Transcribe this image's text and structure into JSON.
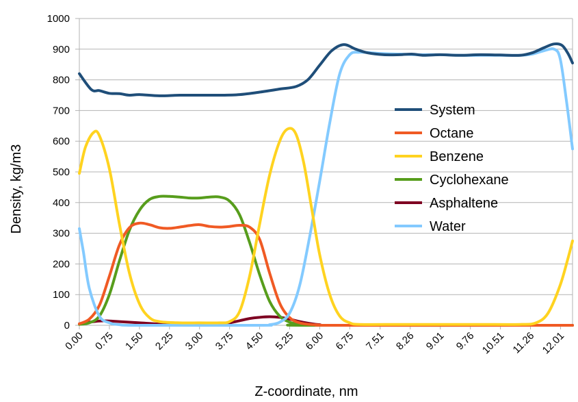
{
  "chart_data": {
    "type": "line",
    "title": "",
    "xlabel": "Z-coordinate, nm",
    "ylabel": "Density, kg/m3",
    "xlim": [
      0,
      12.31
    ],
    "ylim": [
      0,
      1000
    ],
    "x_ticks": [
      "0.00",
      "0.75",
      "1.50",
      "2.25",
      "3.00",
      "3.75",
      "4.50",
      "5.25",
      "6.00",
      "6.75",
      "7.51",
      "8.26",
      "9.01",
      "9.76",
      "10.51",
      "11.26",
      "12.01"
    ],
    "x_tick_values": [
      0,
      0.75,
      1.5,
      2.25,
      3.0,
      3.75,
      4.5,
      5.25,
      6.0,
      6.75,
      7.51,
      8.26,
      9.01,
      9.76,
      10.51,
      11.26,
      12.01
    ],
    "y_ticks": [
      "0",
      "100",
      "200",
      "300",
      "400",
      "500",
      "600",
      "700",
      "800",
      "900",
      "1000"
    ],
    "y_tick_values": [
      0,
      100,
      200,
      300,
      400,
      500,
      600,
      700,
      800,
      900,
      1000
    ],
    "grid": "horizontal",
    "legend_position": "right-middle",
    "series": [
      {
        "name": "System",
        "color": "#1f4e79",
        "points": [
          [
            0,
            820
          ],
          [
            0.3,
            768
          ],
          [
            0.5,
            765
          ],
          [
            0.75,
            756
          ],
          [
            1.0,
            755
          ],
          [
            1.25,
            750
          ],
          [
            1.5,
            752
          ],
          [
            2.0,
            748
          ],
          [
            2.5,
            750
          ],
          [
            3.0,
            750
          ],
          [
            3.5,
            750
          ],
          [
            4.0,
            752
          ],
          [
            4.5,
            760
          ],
          [
            5.0,
            770
          ],
          [
            5.4,
            778
          ],
          [
            5.7,
            800
          ],
          [
            6.0,
            848
          ],
          [
            6.3,
            895
          ],
          [
            6.6,
            915
          ],
          [
            6.9,
            900
          ],
          [
            7.2,
            888
          ],
          [
            7.6,
            882
          ],
          [
            8.0,
            882
          ],
          [
            8.3,
            884
          ],
          [
            8.6,
            880
          ],
          [
            9.0,
            882
          ],
          [
            9.5,
            880
          ],
          [
            10.0,
            882
          ],
          [
            10.5,
            881
          ],
          [
            11.0,
            880
          ],
          [
            11.3,
            888
          ],
          [
            11.6,
            905
          ],
          [
            11.85,
            917
          ],
          [
            12.05,
            912
          ],
          [
            12.2,
            885
          ],
          [
            12.31,
            855
          ]
        ]
      },
      {
        "name": "Octane",
        "color": "#f05a24",
        "points": [
          [
            0,
            5
          ],
          [
            0.25,
            20
          ],
          [
            0.5,
            65
          ],
          [
            0.75,
            160
          ],
          [
            1.0,
            262
          ],
          [
            1.25,
            318
          ],
          [
            1.5,
            333
          ],
          [
            1.75,
            328
          ],
          [
            2.0,
            318
          ],
          [
            2.25,
            316
          ],
          [
            2.5,
            320
          ],
          [
            2.75,
            325
          ],
          [
            3.0,
            328
          ],
          [
            3.25,
            322
          ],
          [
            3.5,
            320
          ],
          [
            3.75,
            322
          ],
          [
            4.0,
            326
          ],
          [
            4.25,
            320
          ],
          [
            4.5,
            280
          ],
          [
            4.75,
            170
          ],
          [
            5.0,
            72
          ],
          [
            5.25,
            25
          ],
          [
            5.5,
            8
          ],
          [
            5.75,
            3
          ],
          [
            6.0,
            1
          ],
          [
            6.5,
            0
          ],
          [
            12.31,
            0
          ]
        ]
      },
      {
        "name": "Benzene",
        "color": "#ffd320",
        "points": [
          [
            0,
            495
          ],
          [
            0.15,
            580
          ],
          [
            0.35,
            628
          ],
          [
            0.5,
            618
          ],
          [
            0.75,
            510
          ],
          [
            1.0,
            330
          ],
          [
            1.25,
            170
          ],
          [
            1.5,
            70
          ],
          [
            1.75,
            25
          ],
          [
            2.0,
            12
          ],
          [
            2.5,
            8
          ],
          [
            3.0,
            8
          ],
          [
            3.5,
            8
          ],
          [
            3.75,
            12
          ],
          [
            4.0,
            45
          ],
          [
            4.25,
            160
          ],
          [
            4.5,
            330
          ],
          [
            4.75,
            490
          ],
          [
            5.0,
            600
          ],
          [
            5.2,
            640
          ],
          [
            5.4,
            625
          ],
          [
            5.6,
            530
          ],
          [
            5.8,
            380
          ],
          [
            6.0,
            230
          ],
          [
            6.25,
            100
          ],
          [
            6.5,
            30
          ],
          [
            6.75,
            8
          ],
          [
            7.0,
            3
          ],
          [
            8.0,
            3
          ],
          [
            9.0,
            3
          ],
          [
            10.0,
            3
          ],
          [
            11.0,
            3
          ],
          [
            11.4,
            8
          ],
          [
            11.7,
            40
          ],
          [
            12.0,
            130
          ],
          [
            12.2,
            220
          ],
          [
            12.31,
            275
          ]
        ]
      },
      {
        "name": "Cyclohexane",
        "color": "#579d1c",
        "points": [
          [
            0,
            3
          ],
          [
            0.25,
            8
          ],
          [
            0.5,
            30
          ],
          [
            0.75,
            100
          ],
          [
            1.0,
            210
          ],
          [
            1.25,
            310
          ],
          [
            1.5,
            375
          ],
          [
            1.75,
            410
          ],
          [
            2.0,
            420
          ],
          [
            2.25,
            420
          ],
          [
            2.5,
            418
          ],
          [
            2.75,
            415
          ],
          [
            3.0,
            415
          ],
          [
            3.25,
            418
          ],
          [
            3.5,
            418
          ],
          [
            3.75,
            405
          ],
          [
            4.0,
            360
          ],
          [
            4.25,
            270
          ],
          [
            4.5,
            165
          ],
          [
            4.75,
            78
          ],
          [
            5.0,
            30
          ],
          [
            5.25,
            10
          ],
          [
            5.5,
            3
          ],
          [
            5.75,
            0
          ],
          [
            12.31,
            0
          ]
        ]
      },
      {
        "name": "Asphaltene",
        "color": "#7e0021",
        "points": [
          [
            0,
            5
          ],
          [
            0.25,
            10
          ],
          [
            0.5,
            14
          ],
          [
            0.75,
            14
          ],
          [
            1.0,
            12
          ],
          [
            1.5,
            8
          ],
          [
            2.0,
            4
          ],
          [
            2.5,
            2
          ],
          [
            3.0,
            2
          ],
          [
            3.5,
            4
          ],
          [
            3.75,
            8
          ],
          [
            4.0,
            15
          ],
          [
            4.25,
            22
          ],
          [
            4.5,
            26
          ],
          [
            4.75,
            28
          ],
          [
            5.0,
            26
          ],
          [
            5.25,
            20
          ],
          [
            5.5,
            12
          ],
          [
            5.75,
            6
          ],
          [
            6.0,
            2
          ],
          [
            6.5,
            0
          ],
          [
            12.31,
            0
          ]
        ]
      },
      {
        "name": "Water",
        "color": "#83caff",
        "points": [
          [
            0,
            315
          ],
          [
            0.1,
            240
          ],
          [
            0.25,
            120
          ],
          [
            0.5,
            30
          ],
          [
            0.75,
            8
          ],
          [
            1.0,
            2
          ],
          [
            1.5,
            0
          ],
          [
            4.5,
            0
          ],
          [
            4.75,
            2
          ],
          [
            5.0,
            10
          ],
          [
            5.25,
            40
          ],
          [
            5.5,
            130
          ],
          [
            5.75,
            290
          ],
          [
            6.0,
            470
          ],
          [
            6.25,
            660
          ],
          [
            6.5,
            820
          ],
          [
            6.75,
            882
          ],
          [
            7.0,
            890
          ],
          [
            7.5,
            886
          ],
          [
            8.0,
            884
          ],
          [
            8.5,
            882
          ],
          [
            9.0,
            882
          ],
          [
            9.5,
            880
          ],
          [
            10.0,
            880
          ],
          [
            10.5,
            880
          ],
          [
            11.0,
            880
          ],
          [
            11.3,
            884
          ],
          [
            11.6,
            895
          ],
          [
            11.85,
            900
          ],
          [
            12.0,
            870
          ],
          [
            12.15,
            740
          ],
          [
            12.31,
            575
          ]
        ]
      }
    ]
  }
}
